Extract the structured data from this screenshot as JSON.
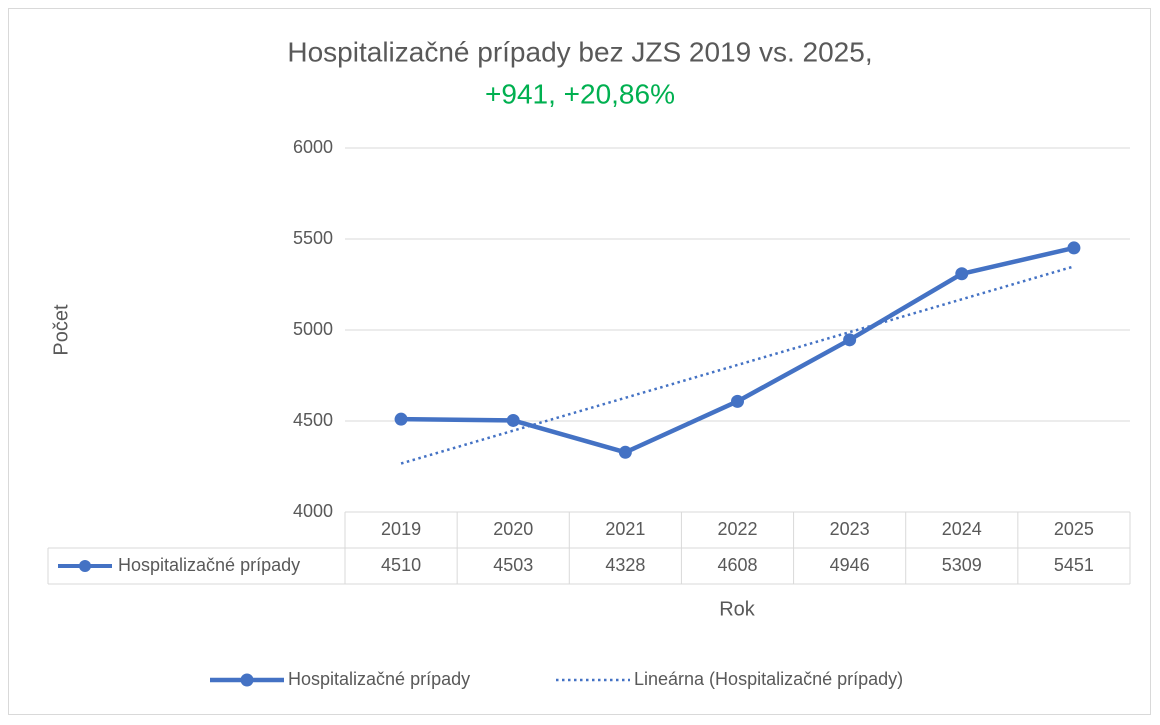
{
  "chart_data": {
    "type": "line",
    "title": "Hospitalizačné prípady bez  JZS 2019 vs. 2025,",
    "subtitle": "+941, +20,86%",
    "subtitle_color": "#00b050",
    "y_label": "Počet",
    "x_label": "Rok",
    "categories": [
      "2019",
      "2020",
      "2021",
      "2022",
      "2023",
      "2024",
      "2025"
    ],
    "series": [
      {
        "name": "Hospitalizačné prípady",
        "color": "#4472c4",
        "values": [
          4510,
          4503,
          4328,
          4608,
          4946,
          5309,
          5451
        ]
      }
    ],
    "trendline": {
      "name": "Lineárna (Hospitalizačné prípady)",
      "kind": "linear",
      "color": "#4472c4"
    },
    "ylim": [
      4000,
      6000
    ],
    "yticks": [
      4000,
      4500,
      5000,
      5500,
      6000
    ],
    "grid": true,
    "data_table": true,
    "legend": "bottom"
  }
}
